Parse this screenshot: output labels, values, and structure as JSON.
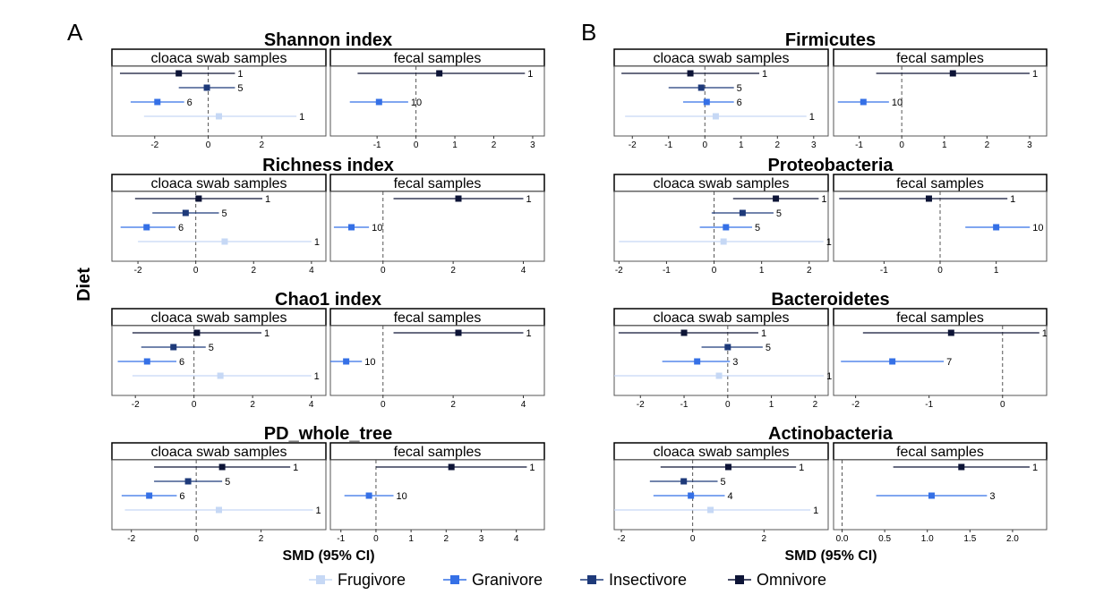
{
  "panel_letters": [
    "A",
    "B"
  ],
  "y_axis_title": "Diet",
  "x_axis_title": "SMD (95% CI)",
  "legend": [
    {
      "label": "Frugivore",
      "color": "#c6d8f5"
    },
    {
      "label": "Granivore",
      "color": "#3570e6"
    },
    {
      "label": "Insectivore",
      "color": "#1e3a7a"
    },
    {
      "label": "Omnivore",
      "color": "#0d1436"
    }
  ],
  "chart_data": [
    {
      "type": "forest",
      "column": "A",
      "title": "Shannon index",
      "facets": [
        {
          "strip": "cloaca swab samples",
          "xlim": [
            -3.6,
            4.4
          ],
          "ticks": [
            -2,
            0,
            2
          ],
          "rows": [
            {
              "diet": "Omnivore",
              "est": -1.1,
              "lo": -3.3,
              "hi": 1.0,
              "n": "1"
            },
            {
              "diet": "Insectivore",
              "est": -0.05,
              "lo": -1.1,
              "hi": 1.0,
              "n": "5"
            },
            {
              "diet": "Granivore",
              "est": -1.9,
              "lo": -2.9,
              "hi": -0.9,
              "n": "6"
            },
            {
              "diet": "Frugivore",
              "est": 0.4,
              "lo": -2.4,
              "hi": 3.3,
              "n": "1"
            }
          ]
        },
        {
          "strip": "fecal samples",
          "xlim": [
            -2.2,
            3.3
          ],
          "ticks": [
            -1,
            0,
            1,
            2,
            3
          ],
          "rows": [
            {
              "diet": "Omnivore",
              "est": 0.6,
              "lo": -1.5,
              "hi": 2.8,
              "n": "1"
            },
            {
              "diet": "Granivore",
              "est": -0.95,
              "lo": -1.7,
              "hi": -0.2,
              "n": "10"
            }
          ]
        }
      ]
    },
    {
      "type": "forest",
      "column": "A",
      "title": "Richness index",
      "facets": [
        {
          "strip": "cloaca swab samples",
          "xlim": [
            -2.9,
            4.5
          ],
          "ticks": [
            -2,
            0,
            2,
            4
          ],
          "rows": [
            {
              "diet": "Omnivore",
              "est": 0.1,
              "lo": -2.1,
              "hi": 2.3,
              "n": "1"
            },
            {
              "diet": "Insectivore",
              "est": -0.35,
              "lo": -1.5,
              "hi": 0.8,
              "n": "5"
            },
            {
              "diet": "Granivore",
              "est": -1.7,
              "lo": -2.6,
              "hi": -0.7,
              "n": "6"
            },
            {
              "diet": "Frugivore",
              "est": 1.0,
              "lo": -2.0,
              "hi": 4.0,
              "n": "1"
            }
          ]
        },
        {
          "strip": "fecal samples",
          "xlim": [
            -1.5,
            4.6
          ],
          "ticks": [
            0,
            2,
            4
          ],
          "rows": [
            {
              "diet": "Omnivore",
              "est": 2.15,
              "lo": 0.3,
              "hi": 4.0,
              "n": "1"
            },
            {
              "diet": "Granivore",
              "est": -0.9,
              "lo": -1.4,
              "hi": -0.4,
              "n": "10"
            }
          ]
        }
      ]
    },
    {
      "type": "forest",
      "column": "A",
      "title": "Chao1 index",
      "facets": [
        {
          "strip": "cloaca swab samples",
          "xlim": [
            -2.8,
            4.5
          ],
          "ticks": [
            -2,
            0,
            2,
            4
          ],
          "rows": [
            {
              "diet": "Omnivore",
              "est": 0.1,
              "lo": -2.1,
              "hi": 2.3,
              "n": "1"
            },
            {
              "diet": "Insectivore",
              "est": -0.7,
              "lo": -1.8,
              "hi": 0.4,
              "n": "5"
            },
            {
              "diet": "Granivore",
              "est": -1.6,
              "lo": -2.6,
              "hi": -0.6,
              "n": "6"
            },
            {
              "diet": "Frugivore",
              "est": 0.9,
              "lo": -2.1,
              "hi": 4.0,
              "n": "1"
            }
          ]
        },
        {
          "strip": "fecal samples",
          "xlim": [
            -1.5,
            4.6
          ],
          "ticks": [
            0,
            2,
            4
          ],
          "rows": [
            {
              "diet": "Omnivore",
              "est": 2.15,
              "lo": 0.3,
              "hi": 4.0,
              "n": "1"
            },
            {
              "diet": "Granivore",
              "est": -1.05,
              "lo": -1.5,
              "hi": -0.6,
              "n": "10"
            }
          ]
        }
      ]
    },
    {
      "type": "forest",
      "column": "A",
      "title": "PD_whole_tree",
      "facets": [
        {
          "strip": "cloaca swab samples",
          "xlim": [
            -2.6,
            4.0
          ],
          "ticks": [
            -2,
            0,
            2
          ],
          "rows": [
            {
              "diet": "Omnivore",
              "est": 0.8,
              "lo": -1.3,
              "hi": 2.9,
              "n": "1"
            },
            {
              "diet": "Insectivore",
              "est": -0.25,
              "lo": -1.3,
              "hi": 0.8,
              "n": "5"
            },
            {
              "diet": "Granivore",
              "est": -1.45,
              "lo": -2.3,
              "hi": -0.6,
              "n": "6"
            },
            {
              "diet": "Frugivore",
              "est": 0.7,
              "lo": -2.2,
              "hi": 3.6,
              "n": "1"
            }
          ]
        },
        {
          "strip": "fecal samples",
          "xlim": [
            -1.3,
            4.8
          ],
          "ticks": [
            -1,
            0,
            1,
            2,
            3,
            4
          ],
          "rows": [
            {
              "diet": "Omnivore",
              "est": 2.15,
              "lo": 0.0,
              "hi": 4.3,
              "n": "1"
            },
            {
              "diet": "Granivore",
              "est": -0.2,
              "lo": -0.9,
              "hi": 0.5,
              "n": "10"
            }
          ]
        }
      ]
    },
    {
      "type": "forest",
      "column": "B",
      "title": "Firmicutes",
      "facets": [
        {
          "strip": "cloaca swab samples",
          "xlim": [
            -2.5,
            3.4
          ],
          "ticks": [
            -2,
            -1,
            0,
            1,
            2,
            3
          ],
          "rows": [
            {
              "diet": "Omnivore",
              "est": -0.4,
              "lo": -2.3,
              "hi": 1.5,
              "n": "1"
            },
            {
              "diet": "Insectivore",
              "est": -0.1,
              "lo": -1.0,
              "hi": 0.8,
              "n": "5"
            },
            {
              "diet": "Granivore",
              "est": 0.05,
              "lo": -0.6,
              "hi": 0.8,
              "n": "6"
            },
            {
              "diet": "Frugivore",
              "est": 0.3,
              "lo": -2.2,
              "hi": 2.8,
              "n": "1"
            }
          ]
        },
        {
          "strip": "fecal samples",
          "xlim": [
            -1.6,
            3.4
          ],
          "ticks": [
            -1,
            0,
            1,
            2,
            3
          ],
          "rows": [
            {
              "diet": "Omnivore",
              "est": 1.2,
              "lo": -0.6,
              "hi": 3.0,
              "n": "1"
            },
            {
              "diet": "Granivore",
              "est": -0.9,
              "lo": -1.5,
              "hi": -0.3,
              "n": "10"
            }
          ]
        }
      ]
    },
    {
      "type": "forest",
      "column": "B",
      "title": "Proteobacteria",
      "facets": [
        {
          "strip": "cloaca swab samples",
          "xlim": [
            -2.1,
            2.4
          ],
          "ticks": [
            -2,
            -1,
            0,
            1,
            2
          ],
          "rows": [
            {
              "diet": "Omnivore",
              "est": 1.3,
              "lo": 0.4,
              "hi": 2.2,
              "n": "1"
            },
            {
              "diet": "Insectivore",
              "est": 0.6,
              "lo": -0.05,
              "hi": 1.25,
              "n": "5"
            },
            {
              "diet": "Granivore",
              "est": 0.25,
              "lo": -0.3,
              "hi": 0.8,
              "n": "5"
            },
            {
              "diet": "Frugivore",
              "est": 0.2,
              "lo": -2.0,
              "hi": 2.3,
              "n": "1"
            }
          ]
        },
        {
          "strip": "fecal samples",
          "xlim": [
            -1.9,
            1.9
          ],
          "ticks": [
            -1,
            0,
            1
          ],
          "rows": [
            {
              "diet": "Omnivore",
              "est": -0.2,
              "lo": -1.8,
              "hi": 1.2,
              "n": "1"
            },
            {
              "diet": "Granivore",
              "est": 1.0,
              "lo": 0.45,
              "hi": 1.6,
              "n": "10"
            }
          ]
        }
      ]
    },
    {
      "type": "forest",
      "column": "B",
      "title": "Bacteroidetes",
      "facets": [
        {
          "strip": "cloaca swab samples",
          "xlim": [
            -2.6,
            2.3
          ],
          "ticks": [
            -2,
            -1,
            0,
            1,
            2
          ],
          "rows": [
            {
              "diet": "Omnivore",
              "est": -1.0,
              "lo": -2.5,
              "hi": 0.7,
              "n": "1"
            },
            {
              "diet": "Insectivore",
              "est": 0.0,
              "lo": -0.6,
              "hi": 0.8,
              "n": "5"
            },
            {
              "diet": "Granivore",
              "est": -0.7,
              "lo": -1.5,
              "hi": 0.05,
              "n": "3"
            },
            {
              "diet": "Frugivore",
              "est": -0.2,
              "lo": -2.6,
              "hi": 2.2,
              "n": "1"
            }
          ]
        },
        {
          "strip": "fecal samples",
          "xlim": [
            -2.3,
            0.6
          ],
          "ticks": [
            -2,
            -1,
            0
          ],
          "rows": [
            {
              "diet": "Omnivore",
              "est": -0.7,
              "lo": -1.9,
              "hi": 0.5,
              "n": "1"
            },
            {
              "diet": "Granivore",
              "est": -1.5,
              "lo": -2.2,
              "hi": -0.8,
              "n": "7"
            }
          ]
        }
      ]
    },
    {
      "type": "forest",
      "column": "B",
      "title": "Actinobacteria",
      "facets": [
        {
          "strip": "cloaca swab samples",
          "xlim": [
            -2.2,
            3.8
          ],
          "ticks": [
            -2,
            0,
            2
          ],
          "rows": [
            {
              "diet": "Omnivore",
              "est": 1.0,
              "lo": -0.9,
              "hi": 2.9,
              "n": "1"
            },
            {
              "diet": "Insectivore",
              "est": -0.25,
              "lo": -1.2,
              "hi": 0.7,
              "n": "5"
            },
            {
              "diet": "Granivore",
              "est": -0.05,
              "lo": -1.1,
              "hi": 0.9,
              "n": "4"
            },
            {
              "diet": "Frugivore",
              "est": 0.5,
              "lo": -2.2,
              "hi": 3.3,
              "n": "1"
            }
          ]
        },
        {
          "strip": "fecal samples",
          "xlim": [
            -0.1,
            2.4
          ],
          "ticks": [
            0.0,
            0.5,
            1.0,
            1.5,
            2.0
          ],
          "rows": [
            {
              "diet": "Omnivore",
              "est": 1.4,
              "lo": 0.6,
              "hi": 2.2,
              "n": "1"
            },
            {
              "diet": "Granivore",
              "est": 1.05,
              "lo": 0.4,
              "hi": 1.7,
              "n": "3"
            }
          ]
        }
      ]
    }
  ]
}
